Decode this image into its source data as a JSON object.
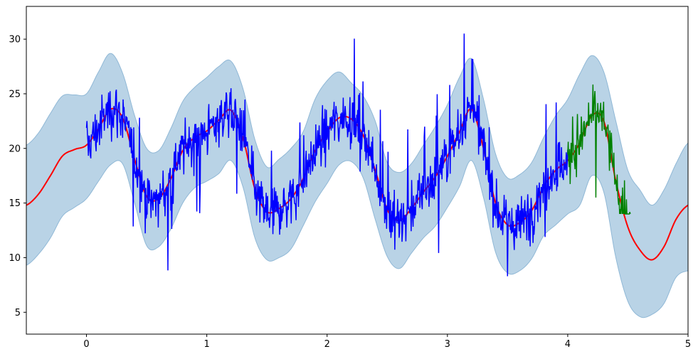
{
  "chart_data": {
    "type": "line",
    "title": "",
    "xlabel": "",
    "ylabel": "",
    "xlim": [
      -0.5,
      5.0
    ],
    "ylim": [
      3.0,
      33.0
    ],
    "xticks": [
      0,
      1,
      2,
      3,
      4,
      5
    ],
    "xtick_labels": [
      "0",
      "1",
      "2",
      "3",
      "4",
      "5"
    ],
    "yticks": [
      5,
      10,
      15,
      20,
      25,
      30
    ],
    "ytick_labels": [
      "5",
      "10",
      "15",
      "20",
      "25",
      "30"
    ],
    "grid": false,
    "colors": {
      "mean": "#ff0000",
      "observed": "#0000ff",
      "test": "#008000",
      "band_fill": "#b9d3e6",
      "band_edge": "#90b8d6"
    },
    "series": [
      {
        "kind": "mean_line",
        "x": [
          -0.5,
          -0.4,
          -0.3,
          -0.2,
          -0.1,
          0.0,
          0.1,
          0.2,
          0.3,
          0.4,
          0.5,
          0.6,
          0.7,
          0.8,
          0.9,
          1.0,
          1.1,
          1.2,
          1.3,
          1.4,
          1.5,
          1.6,
          1.7,
          1.8,
          1.9,
          2.0,
          2.1,
          2.2,
          2.3,
          2.4,
          2.5,
          2.6,
          2.7,
          2.8,
          2.9,
          3.0,
          3.1,
          3.2,
          3.3,
          3.4,
          3.5,
          3.6,
          3.7,
          3.8,
          3.9,
          4.0,
          4.1,
          4.2,
          4.3,
          4.4,
          4.5,
          4.6,
          4.7,
          4.8,
          4.9,
          5.0
        ],
        "y": [
          14.8,
          15.8,
          17.5,
          19.3,
          19.9,
          20.3,
          21.8,
          23.6,
          22.8,
          19.0,
          15.6,
          15.4,
          17.2,
          19.8,
          21.0,
          21.6,
          22.6,
          23.5,
          21.0,
          16.3,
          14.2,
          14.5,
          15.4,
          17.2,
          19.8,
          21.5,
          22.8,
          22.7,
          21.2,
          18.0,
          14.4,
          13.4,
          14.5,
          16.0,
          17.4,
          19.3,
          21.5,
          23.6,
          20.0,
          15.0,
          13.0,
          13.2,
          14.3,
          16.5,
          18.0,
          18.9,
          20.5,
          23.0,
          22.5,
          17.0,
          12.8,
          10.7,
          9.8,
          11.0,
          13.5,
          14.8
        ]
      },
      {
        "kind": "band_upper",
        "x": [
          -0.5,
          -0.4,
          -0.3,
          -0.2,
          -0.1,
          0.0,
          0.1,
          0.2,
          0.3,
          0.4,
          0.5,
          0.6,
          0.7,
          0.8,
          0.9,
          1.0,
          1.1,
          1.2,
          1.3,
          1.4,
          1.5,
          1.6,
          1.7,
          1.8,
          1.9,
          2.0,
          2.1,
          2.2,
          2.3,
          2.4,
          2.5,
          2.6,
          2.7,
          2.8,
          2.9,
          3.0,
          3.1,
          3.2,
          3.3,
          3.4,
          3.5,
          3.6,
          3.7,
          3.8,
          3.9,
          4.0,
          4.1,
          4.2,
          4.3,
          4.4,
          4.5,
          4.6,
          4.7,
          4.8,
          4.9,
          5.0
        ],
        "y": [
          20.3,
          21.4,
          23.2,
          24.8,
          24.9,
          25.0,
          27.0,
          28.7,
          26.9,
          23.0,
          20.0,
          19.8,
          21.8,
          24.3,
          25.6,
          26.5,
          27.5,
          28.0,
          25.5,
          20.8,
          18.3,
          19.0,
          20.0,
          21.5,
          24.5,
          26.2,
          27.0,
          26.0,
          24.8,
          22.5,
          18.7,
          17.8,
          18.6,
          20.3,
          22.0,
          24.0,
          26.5,
          28.2,
          24.5,
          19.5,
          17.3,
          17.6,
          18.7,
          21.0,
          23.0,
          24.5,
          26.8,
          28.5,
          27.0,
          22.5,
          18.0,
          16.2,
          14.8,
          16.2,
          18.6,
          20.5
        ]
      },
      {
        "kind": "band_lower",
        "x": [
          -0.5,
          -0.4,
          -0.3,
          -0.2,
          -0.1,
          0.0,
          0.1,
          0.2,
          0.3,
          0.4,
          0.5,
          0.6,
          0.7,
          0.8,
          0.9,
          1.0,
          1.1,
          1.2,
          1.3,
          1.4,
          1.5,
          1.6,
          1.7,
          1.8,
          1.9,
          2.0,
          2.1,
          2.2,
          2.3,
          2.4,
          2.5,
          2.6,
          2.7,
          2.8,
          2.9,
          3.0,
          3.1,
          3.2,
          3.3,
          3.4,
          3.5,
          3.6,
          3.7,
          3.8,
          3.9,
          4.0,
          4.1,
          4.2,
          4.3,
          4.4,
          4.5,
          4.6,
          4.7,
          4.8,
          4.9,
          5.0
        ],
        "y": [
          9.3,
          10.3,
          11.8,
          13.8,
          14.6,
          15.4,
          17.0,
          18.5,
          18.6,
          15.0,
          11.1,
          11.0,
          12.6,
          15.0,
          16.4,
          17.0,
          17.7,
          18.9,
          16.5,
          11.8,
          9.8,
          10.0,
          10.8,
          12.9,
          15.1,
          16.8,
          18.5,
          18.8,
          17.3,
          13.5,
          10.1,
          9.0,
          10.4,
          11.8,
          12.9,
          14.6,
          16.5,
          18.9,
          15.5,
          10.5,
          8.6,
          8.8,
          9.9,
          12.0,
          13.0,
          14.0,
          14.8,
          17.5,
          16.0,
          10.0,
          6.0,
          4.6,
          4.8,
          5.8,
          8.2,
          8.8
        ]
      },
      {
        "kind": "observed_noisy",
        "x_range": [
          0.0,
          4.0
        ],
        "approx_points": 1000,
        "y_min_approx": 8.3,
        "y_max_approx": 32.5
      },
      {
        "kind": "test_noisy",
        "x_range": [
          4.0,
          4.52
        ],
        "approx_points": 130,
        "y_min_approx": 14.0,
        "y_max_approx": 26.0
      }
    ]
  }
}
